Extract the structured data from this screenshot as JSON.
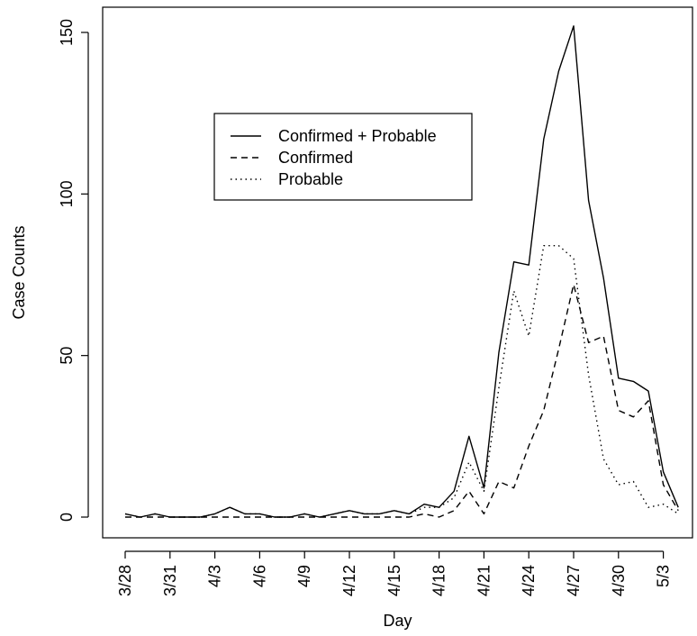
{
  "chart_data": {
    "type": "line",
    "xlabel": "Day",
    "ylabel": "Case Counts",
    "x_ticks": [
      "3/28",
      "3/31",
      "4/3",
      "4/6",
      "4/9",
      "4/12",
      "4/15",
      "4/18",
      "4/21",
      "4/24",
      "4/27",
      "4/30",
      "5/3"
    ],
    "y_ticks": [
      "0",
      "50",
      "100",
      "150"
    ],
    "ylim": [
      0,
      150
    ],
    "legend_position": "top-left",
    "x": [
      "3/28",
      "3/29",
      "3/30",
      "3/31",
      "4/1",
      "4/2",
      "4/3",
      "4/4",
      "4/5",
      "4/6",
      "4/7",
      "4/8",
      "4/9",
      "4/10",
      "4/11",
      "4/12",
      "4/13",
      "4/14",
      "4/15",
      "4/16",
      "4/17",
      "4/18",
      "4/19",
      "4/20",
      "4/21",
      "4/22",
      "4/23",
      "4/24",
      "4/25",
      "4/26",
      "4/27",
      "4/28",
      "4/29",
      "4/30",
      "5/1",
      "5/2",
      "5/3",
      "5/4"
    ],
    "series": [
      {
        "name": "Confirmed + Probable",
        "style": "solid",
        "values": [
          1,
          0,
          1,
          0,
          0,
          0,
          1,
          3,
          1,
          1,
          0,
          0,
          1,
          0,
          1,
          2,
          1,
          1,
          2,
          1,
          4,
          3,
          8,
          25,
          9,
          51,
          79,
          78,
          117,
          138,
          152,
          98,
          74,
          43,
          42,
          39,
          14,
          3
        ]
      },
      {
        "name": "Confirmed",
        "style": "dashed",
        "values": [
          0,
          0,
          0,
          0,
          0,
          0,
          0,
          0,
          0,
          0,
          0,
          0,
          0,
          0,
          0,
          0,
          0,
          0,
          0,
          0,
          1,
          0,
          2,
          8,
          1,
          11,
          9,
          22,
          33,
          52,
          72,
          54,
          56,
          33,
          31,
          36,
          10,
          2
        ]
      },
      {
        "name": "Probable",
        "style": "dotted",
        "values": [
          1,
          0,
          1,
          0,
          0,
          0,
          1,
          3,
          1,
          1,
          0,
          0,
          1,
          0,
          1,
          2,
          1,
          1,
          2,
          1,
          3,
          3,
          6,
          17,
          8,
          40,
          70,
          56,
          84,
          84,
          80,
          44,
          18,
          10,
          11,
          3,
          4,
          1
        ]
      }
    ]
  }
}
